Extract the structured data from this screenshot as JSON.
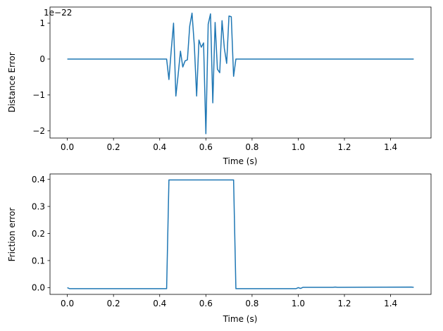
{
  "chart_data": [
    {
      "type": "line",
      "xlabel": "Time (s)",
      "ylabel": "Distance Error",
      "offset_text": "1e−22",
      "xlim": [
        -0.075,
        1.575
      ],
      "ylim": [
        -2.2,
        1.45
      ],
      "xticks": [
        0.0,
        0.2,
        0.4,
        0.6,
        0.8,
        1.0,
        1.2,
        1.4
      ],
      "xtick_labels": [
        "0.0",
        "0.2",
        "0.4",
        "0.6",
        "0.8",
        "1.0",
        "1.2",
        "1.4"
      ],
      "yticks": [
        -2,
        -1,
        0,
        1
      ],
      "ytick_labels": [
        "−2",
        "−1",
        "0",
        "1"
      ],
      "grid": false,
      "line_color": "#1f77b4",
      "series": [
        {
          "x": [
            0.0,
            0.42,
            0.43,
            0.44,
            0.45,
            0.46,
            0.47,
            0.48,
            0.49,
            0.5,
            0.51,
            0.52,
            0.53,
            0.54,
            0.55,
            0.56,
            0.57,
            0.58,
            0.59,
            0.6,
            0.61,
            0.62,
            0.63,
            0.64,
            0.65,
            0.66,
            0.67,
            0.68,
            0.69,
            0.7,
            0.71,
            0.72,
            0.73,
            1.5
          ],
          "y": [
            0.0,
            0.0,
            0.0,
            -0.57,
            0.25,
            1.0,
            -1.03,
            -0.43,
            0.22,
            -0.22,
            -0.05,
            -0.02,
            0.92,
            1.28,
            0.38,
            -1.03,
            0.53,
            0.33,
            0.45,
            -2.08,
            0.97,
            1.26,
            -1.22,
            1.02,
            -0.28,
            -0.38,
            1.07,
            0.3,
            -0.12,
            1.2,
            1.18,
            -0.48,
            0.0,
            0.0
          ]
        }
      ]
    },
    {
      "type": "line",
      "xlabel": "Time (s)",
      "ylabel": "Friction error",
      "xlim": [
        -0.075,
        1.575
      ],
      "ylim": [
        -0.025,
        0.42
      ],
      "xticks": [
        0.0,
        0.2,
        0.4,
        0.6,
        0.8,
        1.0,
        1.2,
        1.4
      ],
      "xtick_labels": [
        "0.0",
        "0.2",
        "0.4",
        "0.6",
        "0.8",
        "1.0",
        "1.2",
        "1.4"
      ],
      "yticks": [
        0.0,
        0.1,
        0.2,
        0.3,
        0.4
      ],
      "ytick_labels": [
        "0.0",
        "0.1",
        "0.2",
        "0.3",
        "0.4"
      ],
      "grid": false,
      "line_color": "#1f77b4",
      "series": [
        {
          "x": [
            0.0,
            0.01,
            0.02,
            0.43,
            0.44,
            0.72,
            0.73,
            0.99,
            1.0,
            1.01,
            1.02,
            1.03,
            1.15,
            1.16,
            1.17,
            1.49,
            1.5
          ],
          "y": [
            0.0,
            -0.004,
            -0.004,
            -0.004,
            0.398,
            0.398,
            -0.004,
            -0.004,
            0.0,
            -0.003,
            0.001,
            0.001,
            0.001,
            0.002,
            0.001,
            0.002,
            0.001
          ]
        }
      ]
    }
  ]
}
